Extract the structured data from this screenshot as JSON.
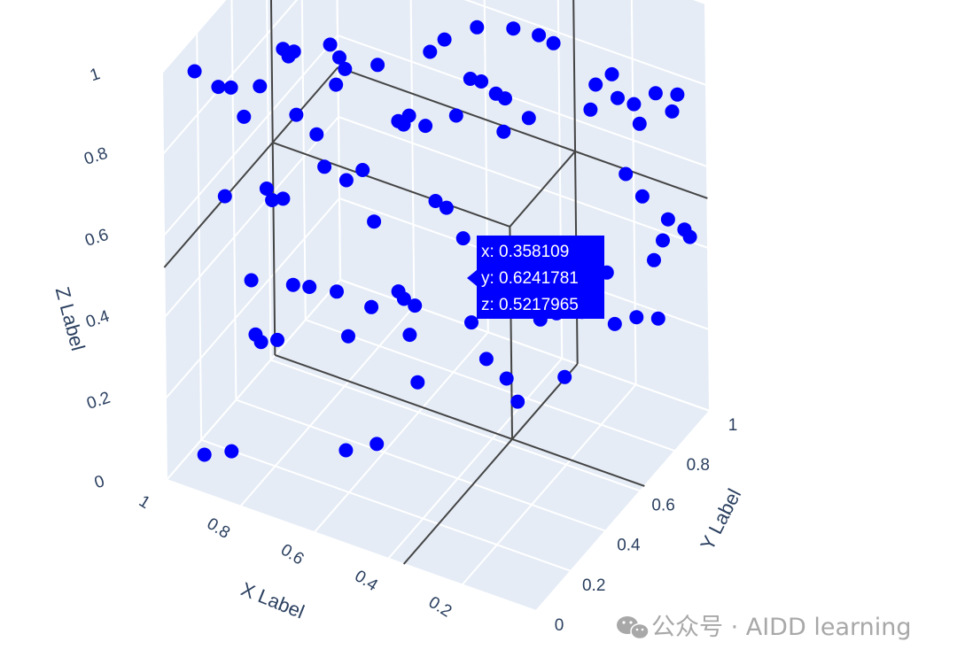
{
  "chart_data": {
    "type": "scatter3d",
    "marker_color": "#0000ff",
    "background_color": "#e5ecf6",
    "grid_color": "#ffffff",
    "spike_color": "#444444",
    "tooltip_color": "#0000ff",
    "axes": {
      "x": {
        "title": "X Label",
        "ticks": [
          "1",
          "0.8",
          "0.6",
          "0.4",
          "0.2"
        ],
        "range": [
          0,
          1
        ]
      },
      "y": {
        "title": "Y Label",
        "ticks": [
          "0",
          "0.2",
          "0.4",
          "0.6",
          "0.8",
          "1"
        ],
        "range": [
          0,
          1
        ]
      },
      "z": {
        "title": "Z Label",
        "ticks": [
          "0",
          "0.2",
          "0.4",
          "0.6",
          "0.8",
          "1"
        ],
        "range": [
          0,
          1
        ]
      }
    },
    "hover": {
      "x_text": "x: 0.358109",
      "y_text": "y: 0.6241781",
      "z_text": "z: 0.5217965",
      "point": {
        "x": 0.358109,
        "y": 0.6241781,
        "z": 0.5217965
      }
    },
    "points": [
      [
        0.95,
        0.08,
        0.98
      ],
      [
        0.91,
        0.13,
        0.93
      ],
      [
        0.89,
        0.16,
        0.92
      ],
      [
        0.84,
        0.22,
        0.91
      ],
      [
        0.87,
        0.19,
        0.84
      ],
      [
        0.8,
        0.27,
        0.99
      ],
      [
        0.78,
        0.29,
        0.98
      ],
      [
        0.79,
        0.28,
        0.97
      ],
      [
        0.71,
        0.35,
        0.99
      ],
      [
        0.69,
        0.36,
        0.96
      ],
      [
        0.68,
        0.37,
        0.93
      ],
      [
        0.7,
        0.36,
        0.89
      ],
      [
        0.78,
        0.3,
        0.82
      ],
      [
        0.74,
        0.33,
        0.77
      ],
      [
        0.62,
        0.43,
        0.93
      ],
      [
        0.52,
        0.52,
        0.95
      ],
      [
        0.49,
        0.54,
        0.98
      ],
      [
        0.43,
        0.6,
        1.0
      ],
      [
        0.36,
        0.66,
        0.99
      ],
      [
        0.31,
        0.7,
        0.97
      ],
      [
        0.28,
        0.72,
        0.95
      ],
      [
        0.44,
        0.58,
        0.88
      ],
      [
        0.42,
        0.6,
        0.87
      ],
      [
        0.39,
        0.62,
        0.84
      ],
      [
        0.37,
        0.63,
        0.83
      ],
      [
        0.56,
        0.48,
        0.8
      ],
      [
        0.58,
        0.46,
        0.79
      ],
      [
        0.57,
        0.47,
        0.78
      ],
      [
        0.53,
        0.51,
        0.77
      ],
      [
        0.47,
        0.56,
        0.79
      ],
      [
        0.38,
        0.64,
        0.74
      ],
      [
        0.33,
        0.68,
        0.77
      ],
      [
        0.2,
        0.79,
        0.84
      ],
      [
        0.17,
        0.82,
        0.86
      ],
      [
        0.21,
        0.78,
        0.78
      ],
      [
        0.16,
        0.83,
        0.8
      ],
      [
        0.13,
        0.86,
        0.78
      ],
      [
        0.09,
        0.9,
        0.8
      ],
      [
        0.05,
        0.94,
        0.79
      ],
      [
        0.06,
        0.93,
        0.75
      ],
      [
        0.12,
        0.87,
        0.73
      ],
      [
        0.9,
        0.14,
        0.66
      ],
      [
        0.82,
        0.21,
        0.67
      ],
      [
        0.81,
        0.22,
        0.64
      ],
      [
        0.79,
        0.24,
        0.64
      ],
      [
        0.71,
        0.31,
        0.71
      ],
      [
        0.67,
        0.35,
        0.67
      ],
      [
        0.64,
        0.38,
        0.69
      ],
      [
        0.5,
        0.5,
        0.6
      ],
      [
        0.48,
        0.52,
        0.58
      ],
      [
        0.45,
        0.55,
        0.5
      ],
      [
        0.62,
        0.4,
        0.56
      ],
      [
        0.14,
        0.83,
        0.62
      ],
      [
        0.11,
        0.86,
        0.56
      ],
      [
        0.06,
        0.9,
        0.5
      ],
      [
        0.07,
        0.89,
        0.45
      ],
      [
        0.03,
        0.93,
        0.47
      ],
      [
        0.02,
        0.94,
        0.45
      ],
      [
        0.18,
        0.8,
        0.38
      ],
      [
        0.21,
        0.77,
        0.4
      ],
      [
        0.09,
        0.88,
        0.4
      ],
      [
        0.85,
        0.18,
        0.45
      ],
      [
        0.77,
        0.25,
        0.43
      ],
      [
        0.74,
        0.28,
        0.42
      ],
      [
        0.69,
        0.33,
        0.4
      ],
      [
        0.62,
        0.38,
        0.36
      ],
      [
        0.57,
        0.43,
        0.39
      ],
      [
        0.56,
        0.44,
        0.37
      ],
      [
        0.54,
        0.46,
        0.35
      ],
      [
        0.84,
        0.18,
        0.32
      ],
      [
        0.83,
        0.19,
        0.3
      ],
      [
        0.8,
        0.22,
        0.3
      ],
      [
        0.66,
        0.33,
        0.3
      ],
      [
        0.55,
        0.45,
        0.28
      ],
      [
        0.43,
        0.55,
        0.3
      ],
      [
        0.3,
        0.67,
        0.29
      ],
      [
        0.27,
        0.7,
        0.3
      ],
      [
        0.22,
        0.74,
        0.3
      ],
      [
        0.16,
        0.8,
        0.26
      ],
      [
        0.12,
        0.84,
        0.27
      ],
      [
        0.08,
        0.88,
        0.26
      ],
      [
        0.53,
        0.45,
        0.17
      ],
      [
        0.4,
        0.57,
        0.21
      ],
      [
        0.36,
        0.6,
        0.16
      ],
      [
        0.34,
        0.62,
        0.1
      ],
      [
        0.93,
        0.07,
        0.05
      ],
      [
        0.88,
        0.12,
        0.05
      ],
      [
        0.66,
        0.31,
        0.03
      ],
      [
        0.6,
        0.36,
        0.04
      ],
      [
        0.25,
        0.7,
        0.15
      ]
    ]
  },
  "watermark": {
    "text": "公众号 · AIDD learning",
    "icon": "wechat-icon"
  }
}
